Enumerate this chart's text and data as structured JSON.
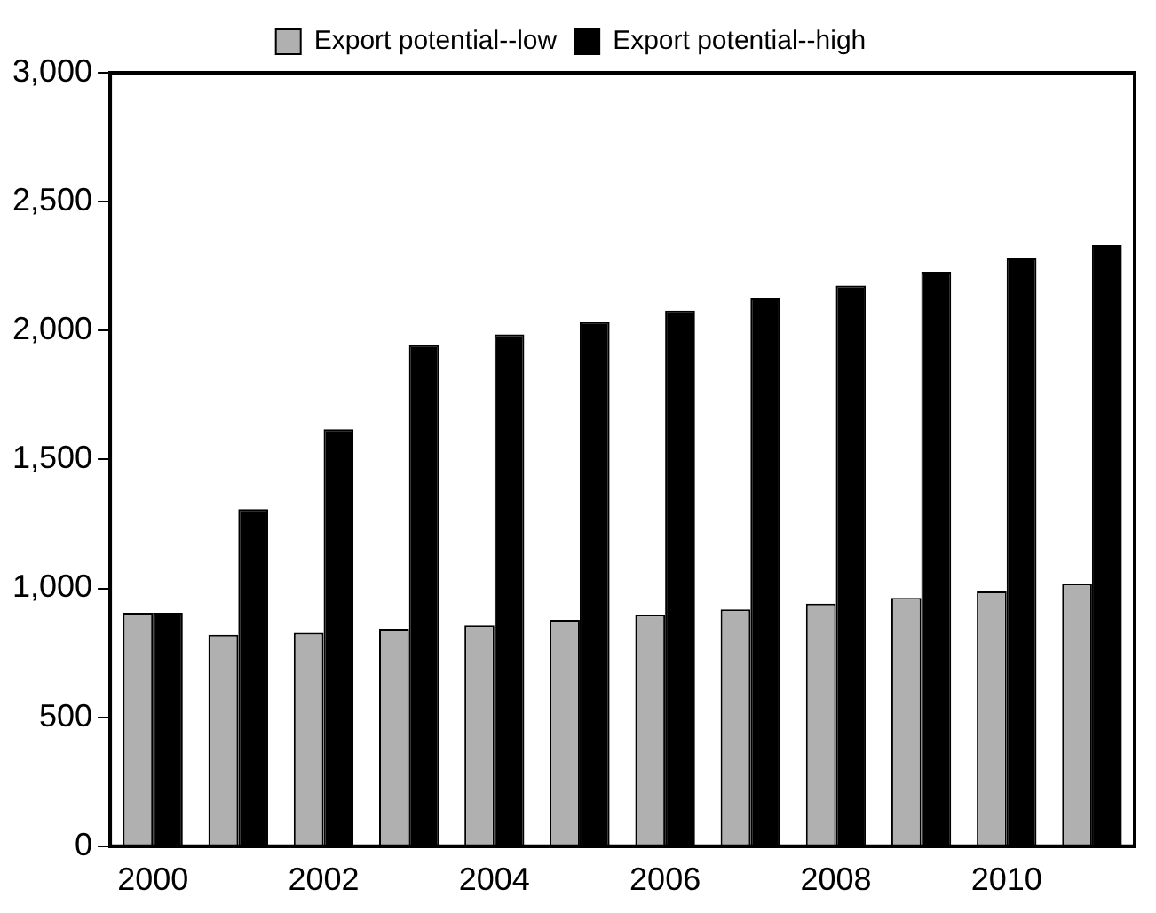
{
  "chart_data": {
    "type": "bar",
    "categories": [
      "2000",
      null,
      "2002",
      null,
      "2004",
      null,
      "2006",
      null,
      "2008",
      null,
      "2010",
      null
    ],
    "series": [
      {
        "name": "Export potential--low",
        "color": "#b0b0b0",
        "values": [
          905,
          820,
          828,
          843,
          856,
          878,
          898,
          918,
          941,
          963,
          988,
          1018
        ]
      },
      {
        "name": "Export potential--high",
        "color": "#000000",
        "values": [
          905,
          1308,
          1618,
          1943,
          1985,
          2033,
          2078,
          2125,
          2175,
          2228,
          2280,
          2332
        ]
      }
    ],
    "ylim": [
      0,
      3000
    ],
    "yticks": [
      {
        "value": 0,
        "label": "0"
      },
      {
        "value": 500,
        "label": "500"
      },
      {
        "value": 1000,
        "label": "1,000"
      },
      {
        "value": 1500,
        "label": "1,500"
      },
      {
        "value": 2000,
        "label": "2,000"
      },
      {
        "value": 2500,
        "label": "2,500"
      },
      {
        "value": 3000,
        "label": "3,000"
      }
    ],
    "grid": false,
    "legend": "top"
  }
}
